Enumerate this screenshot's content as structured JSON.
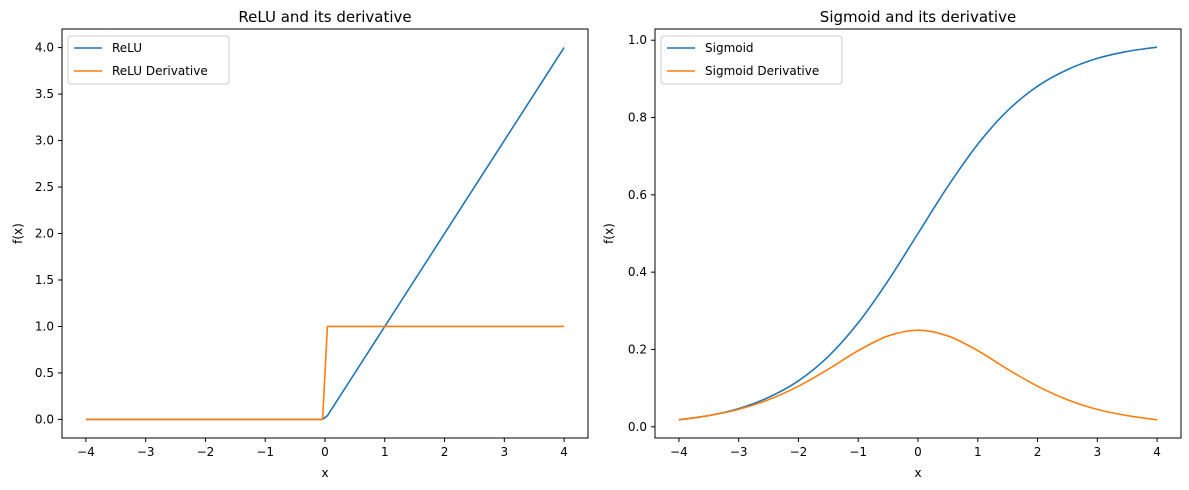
{
  "chart_data": [
    {
      "type": "line",
      "title": "ReLU and its derivative",
      "xlabel": "x",
      "ylabel": "f(x)",
      "xlim": [
        -4.4,
        4.4
      ],
      "ylim": [
        -0.2,
        4.2
      ],
      "xticks": [
        -4,
        -3,
        -2,
        -1,
        0,
        1,
        2,
        3,
        4
      ],
      "xtick_labels": [
        "−4",
        "−3",
        "−2",
        "−1",
        "0",
        "1",
        "2",
        "3",
        "4"
      ],
      "yticks": [
        0,
        0.5,
        1,
        1.5,
        2,
        2.5,
        3,
        3.5,
        4
      ],
      "ytick_labels": [
        "0.0",
        "0.5",
        "1.0",
        "1.5",
        "2.0",
        "2.5",
        "3.0",
        "3.5",
        "4.0"
      ],
      "grid": false,
      "legend_position": "top-left",
      "series": [
        {
          "name": "ReLU",
          "color": "#1f77b4",
          "x": [
            -4,
            -0.04,
            0.04,
            4
          ],
          "y": [
            0,
            0,
            0.04,
            4
          ]
        },
        {
          "name": "ReLU Derivative",
          "color": "#ff7f0e",
          "x": [
            -4,
            -0.04,
            0.04,
            4
          ],
          "y": [
            0,
            0,
            1,
            1
          ]
        }
      ]
    },
    {
      "type": "line",
      "title": "Sigmoid and its derivative",
      "xlabel": "x",
      "ylabel": "f(x)",
      "xlim": [
        -4.4,
        4.4
      ],
      "ylim": [
        -0.0
      ],
      "xticks": [
        -4,
        -3,
        -2,
        -1,
        0,
        1,
        2,
        3,
        4
      ],
      "xtick_labels": [
        "−4",
        "−3",
        "−2",
        "−1",
        "0",
        "1",
        "2",
        "3",
        "4"
      ],
      "yticks": [
        0,
        0.2,
        0.4,
        0.6,
        0.8,
        1.0
      ],
      "ytick_labels": [
        "0.0",
        "0.2",
        "0.4",
        "0.6",
        "0.8",
        "1.0"
      ],
      "grid": false,
      "legend_position": "top-left",
      "series": [
        {
          "name": "Sigmoid",
          "color": "#1f77b4",
          "x": [
            -4,
            -3.5,
            -3,
            -2.5,
            -2,
            -1.5,
            -1,
            -0.5,
            0,
            0.5,
            1,
            1.5,
            2,
            2.5,
            3,
            3.5,
            4
          ],
          "y": [
            0.018,
            0.029,
            0.047,
            0.076,
            0.119,
            0.182,
            0.269,
            0.378,
            0.5,
            0.622,
            0.731,
            0.818,
            0.881,
            0.924,
            0.953,
            0.971,
            0.982
          ]
        },
        {
          "name": "Sigmoid Derivative",
          "color": "#ff7f0e",
          "x": [
            -4,
            -3.5,
            -3,
            -2.5,
            -2,
            -1.5,
            -1,
            -0.5,
            0,
            0.5,
            1,
            1.5,
            2,
            2.5,
            3,
            3.5,
            4
          ],
          "y": [
            0.018,
            0.029,
            0.045,
            0.07,
            0.105,
            0.149,
            0.197,
            0.235,
            0.25,
            0.235,
            0.197,
            0.149,
            0.105,
            0.07,
            0.045,
            0.029,
            0.018
          ]
        }
      ]
    }
  ]
}
